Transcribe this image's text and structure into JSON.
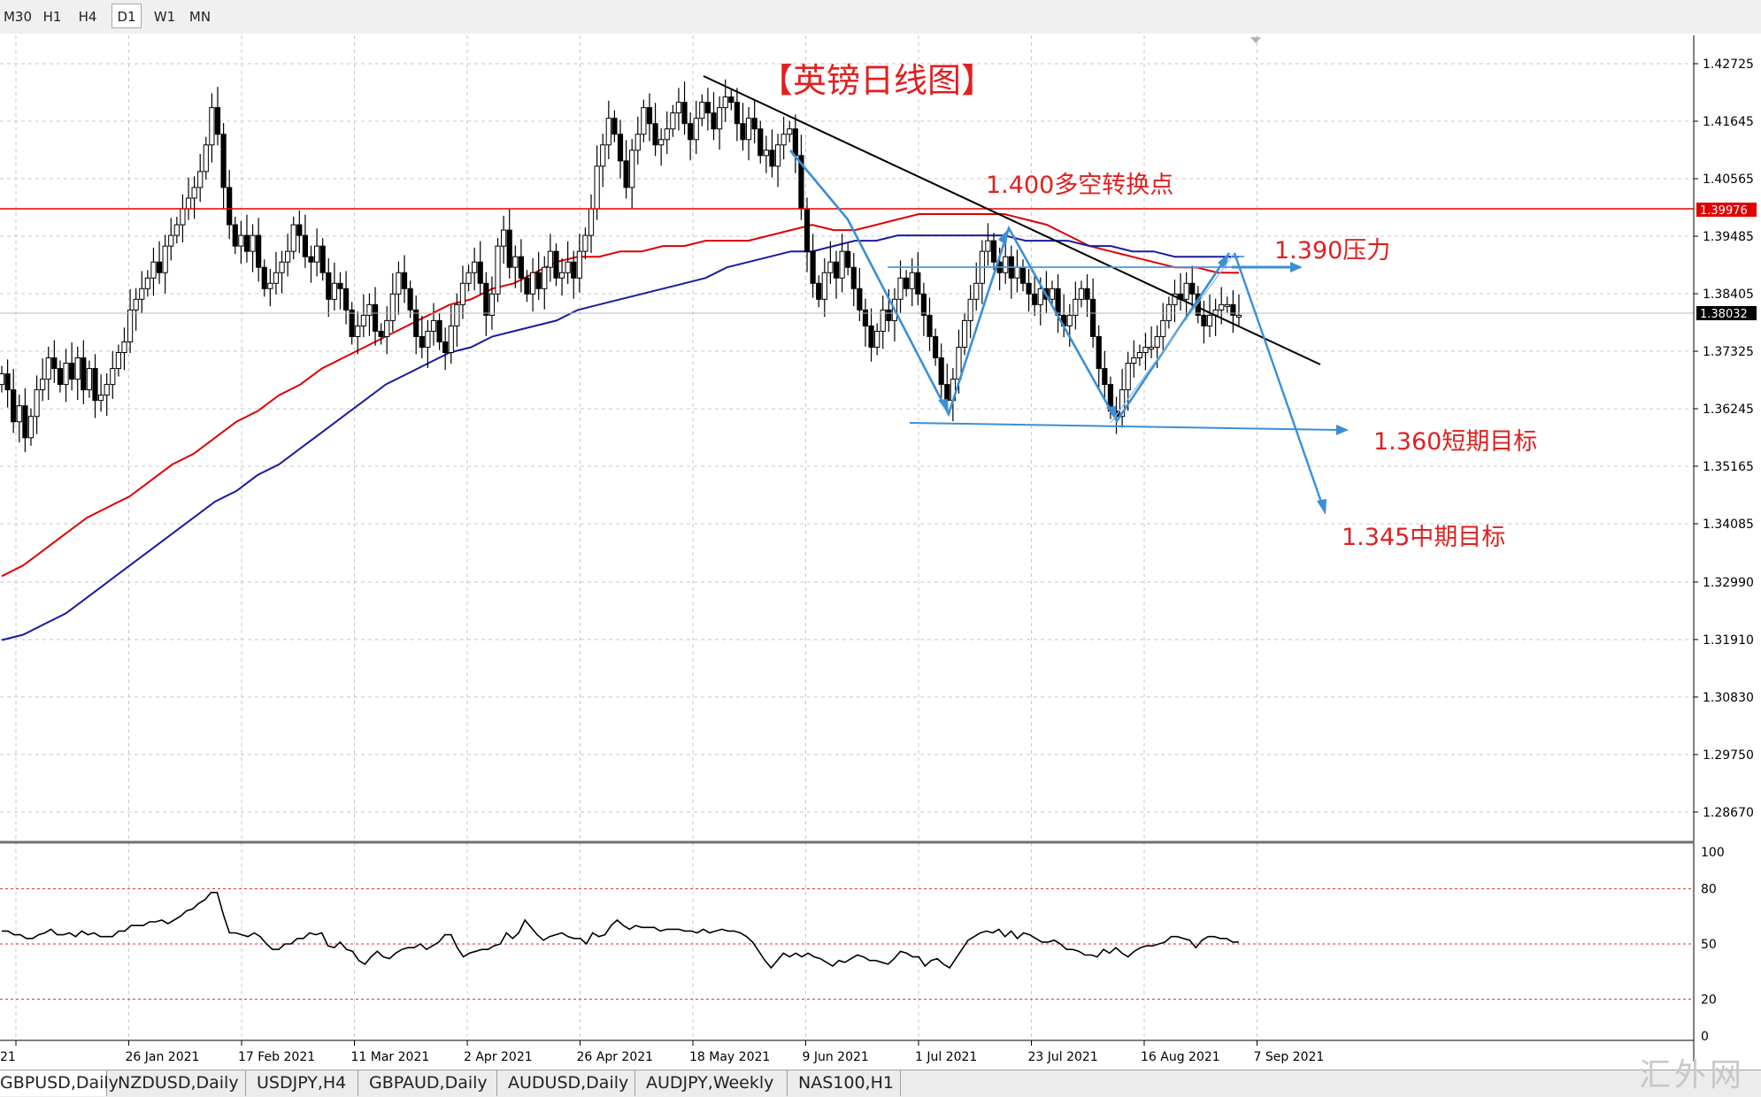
{
  "toolbar": {
    "timeframes": [
      {
        "label": "M30",
        "active": false
      },
      {
        "label": "H1",
        "active": false
      },
      {
        "label": "H4",
        "active": false
      },
      {
        "label": "D1",
        "active": true
      },
      {
        "label": "W1",
        "active": false
      },
      {
        "label": "MN",
        "active": false
      }
    ]
  },
  "tabs": [
    {
      "label": "GBPUSD,Daily",
      "active": true
    },
    {
      "label": "NZDUSD,Daily",
      "active": false
    },
    {
      "label": "USDJPY,H4",
      "active": false
    },
    {
      "label": "GBPAUD,Daily",
      "active": false
    },
    {
      "label": "AUDUSD,Daily",
      "active": false
    },
    {
      "label": "AUDJPY,Weekly",
      "active": false
    },
    {
      "label": "NAS100,H1",
      "active": false
    }
  ],
  "watermark": "汇外网",
  "chart_data": {
    "type": "candlestick",
    "title": "【英镑日线图】",
    "symbol": "GBPUSD,Daily",
    "x_labels": [
      "21",
      "26 Jan 2021",
      "17 Feb 2021",
      "11 Mar 2021",
      "2 Apr 2021",
      "26 Apr 2021",
      "18 May 2021",
      "9 Jun 2021",
      "1 Jul 2021",
      "23 Jul 2021",
      "16 Aug 2021",
      "7 Sep 2021"
    ],
    "price_axis": {
      "ticks": [
        "1.42725",
        "1.41645",
        "1.40565",
        "1.39485",
        "1.38405",
        "1.37325",
        "1.36245",
        "1.35165",
        "1.34085",
        "1.32990",
        "1.31910",
        "1.30830",
        "1.29750",
        "1.28670"
      ],
      "ylim": [
        1.2803,
        1.431
      ]
    },
    "current_price": "1.38032",
    "red_level": "1.39976",
    "closes": [
      1.369,
      1.366,
      1.36,
      1.363,
      1.357,
      1.361,
      1.366,
      1.368,
      1.372,
      1.37,
      1.367,
      1.371,
      1.368,
      1.372,
      1.366,
      1.37,
      1.364,
      1.365,
      1.367,
      1.37,
      1.373,
      1.375,
      1.381,
      1.383,
      1.385,
      1.387,
      1.39,
      1.388,
      1.393,
      1.395,
      1.397,
      1.4,
      1.402,
      1.404,
      1.407,
      1.412,
      1.419,
      1.414,
      1.404,
      1.397,
      1.393,
      1.395,
      1.392,
      1.395,
      1.389,
      1.385,
      1.386,
      1.388,
      1.39,
      1.392,
      1.397,
      1.395,
      1.391,
      1.39,
      1.393,
      1.388,
      1.383,
      1.386,
      1.385,
      1.381,
      1.376,
      1.378,
      1.38,
      1.382,
      1.377,
      1.376,
      1.379,
      1.384,
      1.388,
      1.385,
      1.381,
      1.376,
      1.374,
      1.377,
      1.379,
      1.375,
      1.373,
      1.378,
      1.382,
      1.386,
      1.388,
      1.39,
      1.386,
      1.38,
      1.384,
      1.393,
      1.396,
      1.389,
      1.391,
      1.387,
      1.384,
      1.388,
      1.385,
      1.389,
      1.392,
      1.387,
      1.388,
      1.39,
      1.387,
      1.392,
      1.395,
      1.4,
      1.408,
      1.412,
      1.417,
      1.414,
      1.409,
      1.404,
      1.411,
      1.414,
      1.419,
      1.416,
      1.412,
      1.413,
      1.415,
      1.418,
      1.42,
      1.416,
      1.413,
      1.417,
      1.42,
      1.418,
      1.415,
      1.419,
      1.421,
      1.42,
      1.416,
      1.413,
      1.417,
      1.415,
      1.41,
      1.411,
      1.408,
      1.412,
      1.414,
      1.415,
      1.41,
      1.4,
      1.392,
      1.386,
      1.383,
      1.388,
      1.39,
      1.387,
      1.392,
      1.389,
      1.385,
      1.381,
      1.378,
      1.374,
      1.377,
      1.381,
      1.379,
      1.383,
      1.387,
      1.385,
      1.388,
      1.384,
      1.38,
      1.376,
      1.372,
      1.367,
      1.364,
      1.368,
      1.374,
      1.379,
      1.383,
      1.386,
      1.392,
      1.394,
      1.39,
      1.388,
      1.391,
      1.387,
      1.389,
      1.386,
      1.384,
      1.382,
      1.385,
      1.383,
      1.385,
      1.38,
      1.378,
      1.38,
      1.383,
      1.385,
      1.383,
      1.376,
      1.37,
      1.367,
      1.362,
      1.361,
      1.366,
      1.371,
      1.372,
      1.373,
      1.374,
      1.374,
      1.376,
      1.379,
      1.382,
      1.384,
      1.383,
      1.386,
      1.384,
      1.38,
      1.378,
      1.38,
      1.381,
      1.382,
      1.382,
      1.38,
      1.38
    ],
    "moving_averages": [
      {
        "color": "#dd0000",
        "values": [
          1.331,
          1.333,
          1.336,
          1.339,
          1.342,
          1.344,
          1.346,
          1.349,
          1.352,
          1.354,
          1.357,
          1.36,
          1.362,
          1.365,
          1.367,
          1.37,
          1.372,
          1.374,
          1.376,
          1.378,
          1.38,
          1.382,
          1.383,
          1.385,
          1.386,
          1.388,
          1.39,
          1.391,
          1.391,
          1.392,
          1.392,
          1.393,
          1.393,
          1.394,
          1.394,
          1.394,
          1.395,
          1.396,
          1.397,
          1.396,
          1.396,
          1.397,
          1.398,
          1.399,
          1.399,
          1.399,
          1.399,
          1.399,
          1.398,
          1.397,
          1.395,
          1.393,
          1.392,
          1.391,
          1.39,
          1.389,
          1.389,
          1.388,
          1.388
        ]
      },
      {
        "color": "#1a1aa0",
        "values": [
          1.319,
          1.32,
          1.322,
          1.324,
          1.327,
          1.33,
          1.333,
          1.336,
          1.339,
          1.342,
          1.345,
          1.347,
          1.35,
          1.352,
          1.355,
          1.358,
          1.361,
          1.364,
          1.367,
          1.369,
          1.371,
          1.373,
          1.374,
          1.376,
          1.377,
          1.378,
          1.379,
          1.381,
          1.382,
          1.383,
          1.384,
          1.385,
          1.386,
          1.387,
          1.389,
          1.39,
          1.391,
          1.392,
          1.392,
          1.393,
          1.394,
          1.394,
          1.395,
          1.395,
          1.395,
          1.395,
          1.395,
          1.395,
          1.394,
          1.394,
          1.394,
          1.393,
          1.393,
          1.392,
          1.392,
          1.391,
          1.391,
          1.391,
          1.391
        ]
      }
    ],
    "annotations": [
      {
        "text": "1.400多空转换点",
        "color": "#dd2222"
      },
      {
        "text": "1.390压力",
        "color": "#dd2222"
      },
      {
        "text": "1.360短期目标",
        "color": "#dd2222"
      },
      {
        "text": "1.345中期目标",
        "color": "#dd2222"
      }
    ],
    "oscillator": {
      "ticks": [
        "100",
        "80",
        "50",
        "20",
        "0"
      ],
      "levels": [
        80,
        50,
        20
      ],
      "ylim": [
        0,
        100
      ],
      "values": [
        57,
        57,
        55,
        55,
        53,
        53,
        55,
        56,
        58,
        55,
        55,
        56,
        54,
        57,
        55,
        56,
        54,
        54,
        54,
        57,
        57,
        60,
        60,
        60,
        62,
        62,
        63,
        61,
        63,
        65,
        68,
        69,
        72,
        74,
        78,
        78,
        66,
        56,
        56,
        55,
        54,
        56,
        54,
        50,
        47,
        47,
        50,
        50,
        53,
        53,
        56,
        55,
        56,
        49,
        48,
        51,
        47,
        46,
        41,
        39,
        43,
        46,
        43,
        42,
        45,
        47,
        48,
        48,
        50,
        47,
        49,
        51,
        55,
        55,
        48,
        43,
        45,
        46,
        47,
        47,
        49,
        50,
        56,
        53,
        56,
        63,
        59,
        55,
        52,
        54,
        55,
        56,
        54,
        53,
        53,
        50,
        56,
        54,
        55,
        60,
        63,
        60,
        58,
        60,
        59,
        59,
        59,
        57,
        58,
        58,
        58,
        57,
        57,
        56,
        58,
        56,
        57,
        58,
        57,
        57,
        56,
        54,
        51,
        46,
        41,
        37,
        41,
        45,
        43,
        45,
        43,
        45,
        43,
        42,
        40,
        38,
        41,
        40,
        42,
        44,
        43,
        41,
        41,
        40,
        39,
        42,
        46,
        45,
        43,
        43,
        38,
        41,
        42,
        39,
        37,
        42,
        47,
        52,
        54,
        56,
        57,
        56,
        58,
        54,
        57,
        53,
        56,
        55,
        53,
        51,
        51,
        52,
        50,
        47,
        47,
        46,
        44,
        44,
        43,
        47,
        45,
        48,
        45,
        43,
        46,
        48,
        49,
        49,
        50,
        51,
        54,
        54,
        53,
        52,
        48,
        52,
        54,
        54,
        53,
        53,
        51,
        51
      ]
    }
  }
}
